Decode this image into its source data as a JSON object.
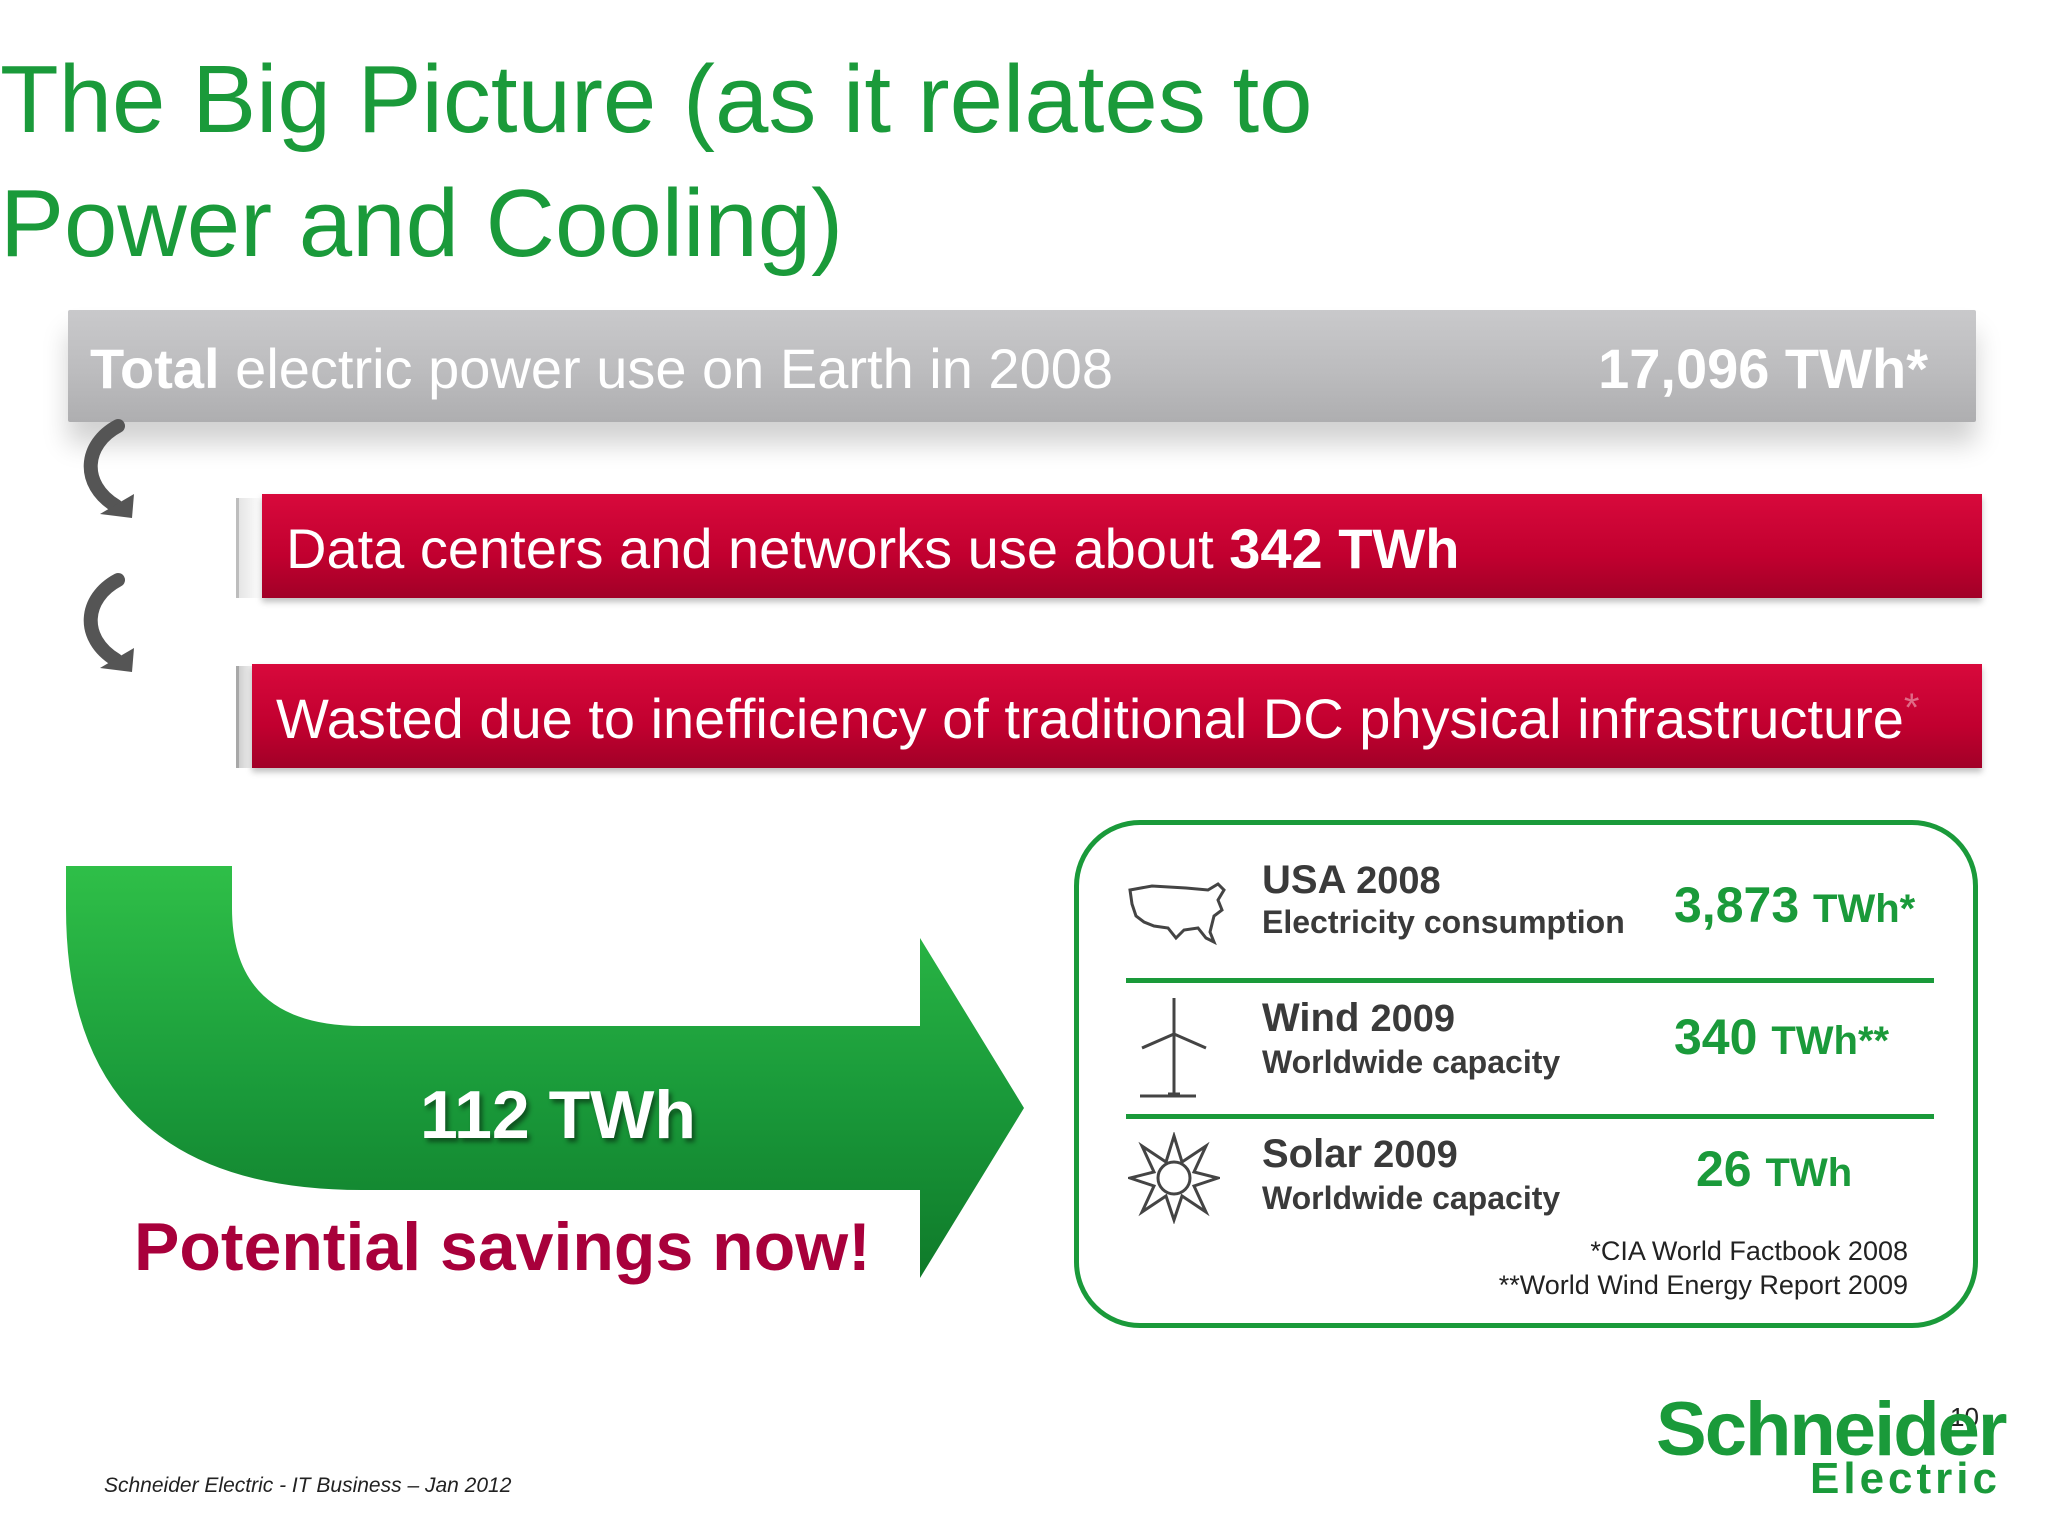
{
  "title": "The Big Picture (as it relates to\nPower and Cooling)",
  "total_bar": {
    "label_bold": "Total",
    "label_rest": " electric power use on Earth in 2008",
    "value": "17,096 TWh*"
  },
  "dc_bar": {
    "text": "Data centers and networks use about ",
    "value": "342 TWh"
  },
  "waste_bar": {
    "text": "Wasted due to inefficiency of traditional DC physical infrastructure",
    "asterisk": "*"
  },
  "arrow": {
    "value": "112 TWh",
    "caption": "Potential savings now!"
  },
  "comparison": {
    "rows": [
      {
        "icon": "usa-map-icon",
        "title": "USA",
        "year": "2008",
        "subtitle": "Electricity consumption",
        "value": "3,873",
        "unit": "TWh*"
      },
      {
        "icon": "wind-turbine-icon",
        "title": "Wind",
        "year": "2009",
        "subtitle": "Worldwide capacity",
        "value": "340",
        "unit": "TWh**"
      },
      {
        "icon": "solar-sun-icon",
        "title": "Solar",
        "year": "2009",
        "subtitle": "Worldwide capacity",
        "value": "26",
        "unit": "TWh"
      }
    ],
    "sources": [
      "*CIA World Factbook 2008",
      "**World Wind Energy Report 2009"
    ]
  },
  "footer": "Schneider Electric - IT Business – Jan 2012",
  "page_number": "10",
  "logo": {
    "top": "Schneider",
    "bottom": "Electric"
  },
  "colors": {
    "green": "#1a9a3a",
    "red": "#c1002f",
    "maroon": "#a8003b",
    "grey": "#bcbcbe"
  }
}
